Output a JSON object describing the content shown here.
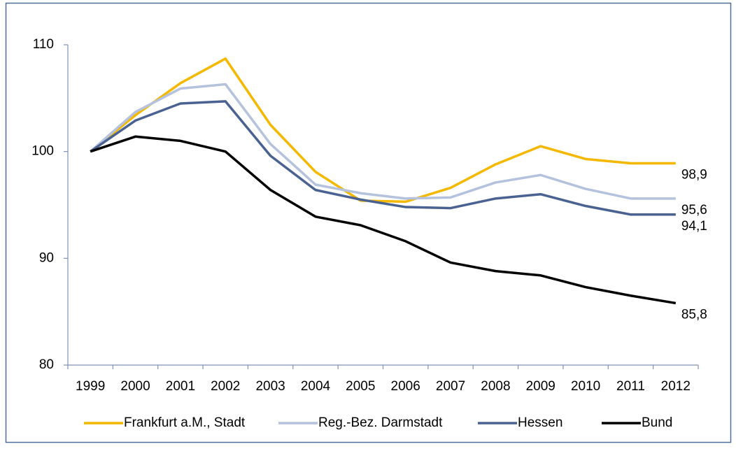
{
  "chart_data": {
    "type": "line",
    "categories": [
      "1999",
      "2000",
      "2001",
      "2002",
      "2003",
      "2004",
      "2005",
      "2006",
      "2007",
      "2008",
      "2009",
      "2010",
      "2011",
      "2012"
    ],
    "ylim": [
      80,
      110
    ],
    "yticks": [
      80,
      90,
      100,
      110
    ],
    "legend": "bottom",
    "series": [
      {
        "name": "Frankfurt a.M., Stadt",
        "color": "#f5b800",
        "values": [
          100,
          103.4,
          106.4,
          108.7,
          102.5,
          98.1,
          95.4,
          95.3,
          96.6,
          98.8,
          100.5,
          99.3,
          98.9,
          98.9
        ],
        "value_labels": [
          null,
          null,
          null,
          null,
          null,
          null,
          null,
          null,
          null,
          null,
          null,
          null,
          null,
          "98,9"
        ]
      },
      {
        "name": "Reg.-Bez. Darmstadt",
        "color": "#b4c2dd",
        "values": [
          100,
          103.7,
          105.9,
          106.3,
          100.7,
          96.9,
          96.1,
          95.6,
          95.7,
          97.1,
          97.8,
          96.5,
          95.6,
          95.6
        ],
        "value_labels": [
          null,
          null,
          null,
          null,
          null,
          null,
          null,
          null,
          null,
          null,
          null,
          null,
          null,
          "95,6"
        ]
      },
      {
        "name": "Hessen",
        "color": "#4a6291",
        "values": [
          100,
          102.9,
          104.5,
          104.7,
          99.6,
          96.4,
          95.5,
          94.8,
          94.7,
          95.6,
          96.0,
          94.9,
          94.1,
          94.1
        ],
        "value_labels": [
          null,
          null,
          null,
          null,
          null,
          null,
          null,
          null,
          null,
          null,
          null,
          null,
          null,
          "94,1"
        ]
      },
      {
        "name": "Bund",
        "color": "#000000",
        "values": [
          100,
          101.4,
          101.0,
          100.0,
          96.4,
          93.9,
          93.1,
          91.6,
          89.6,
          88.8,
          88.4,
          87.3,
          86.5,
          85.8
        ],
        "value_labels": [
          null,
          null,
          null,
          null,
          null,
          null,
          null,
          null,
          null,
          null,
          null,
          null,
          null,
          "85,8"
        ]
      }
    ]
  }
}
